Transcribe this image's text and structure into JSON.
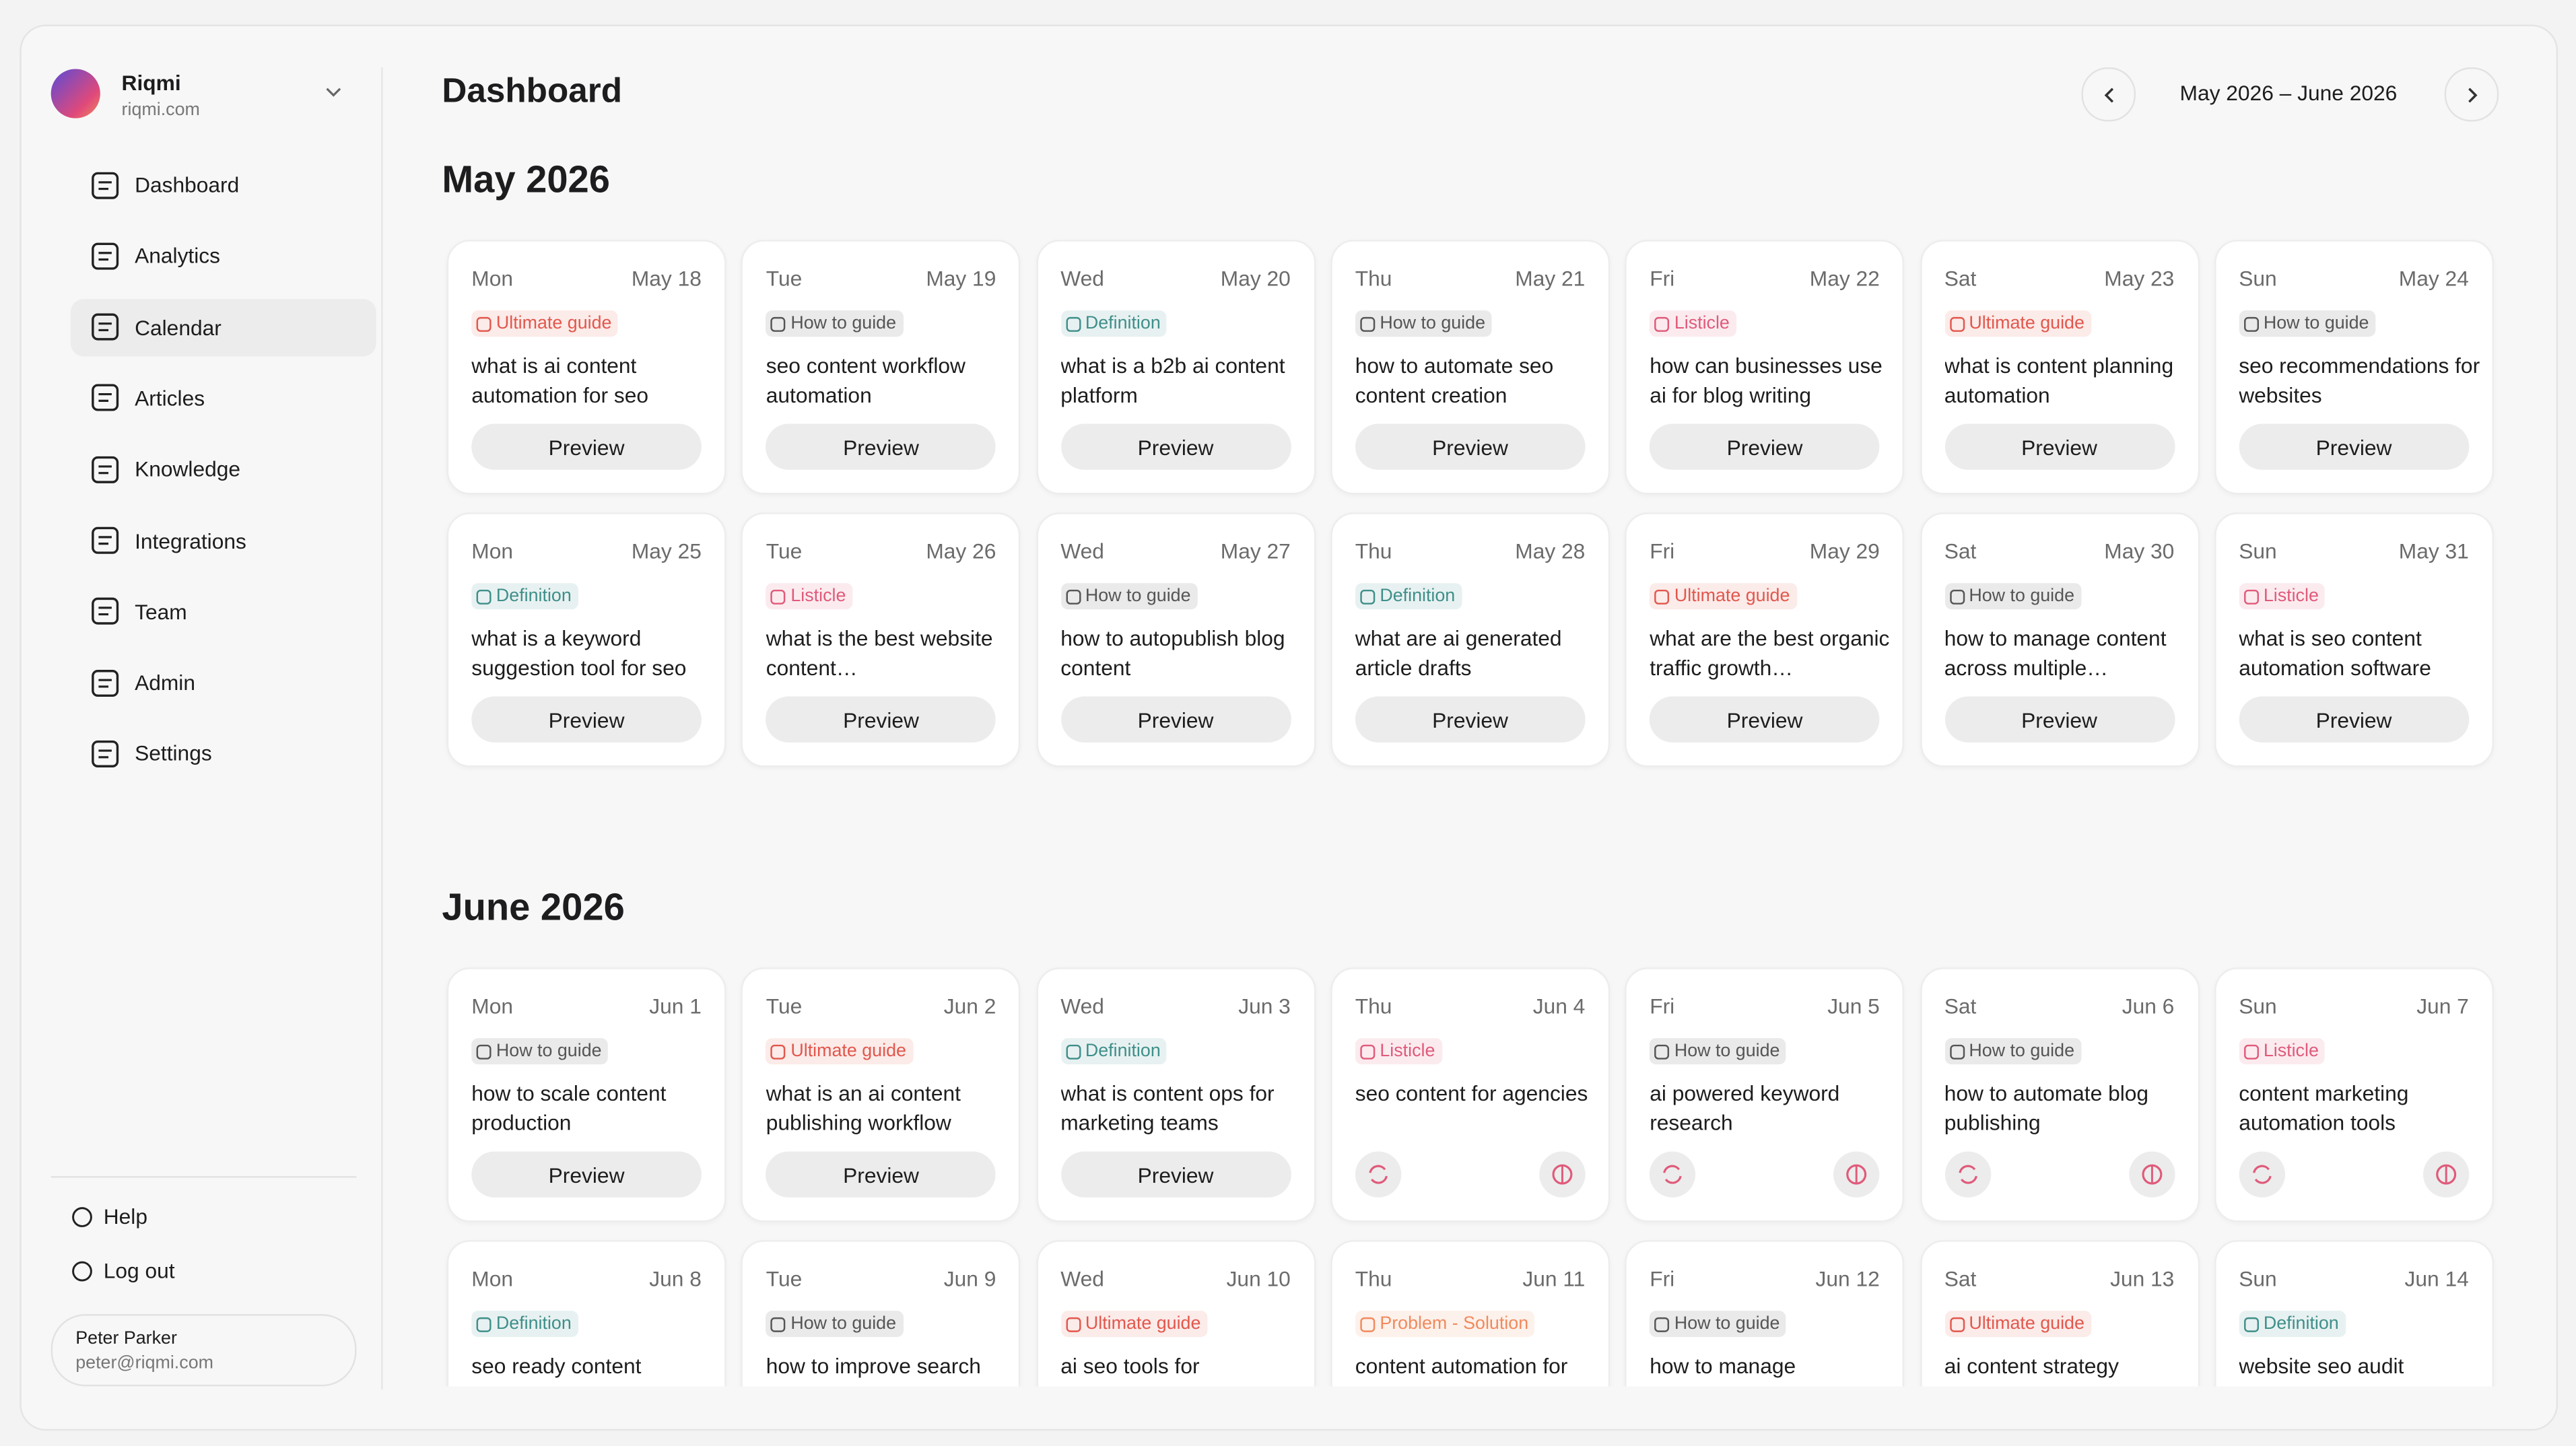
{
  "user": {
    "name": "Riqmi",
    "domain": "riqmi.com"
  },
  "nav": [
    "Dashboard",
    "Analytics",
    "Calendar",
    "Articles",
    "Knowledge",
    "Integrations",
    "Team",
    "Admin",
    "Settings"
  ],
  "active_nav": 2,
  "footer_nav": [
    "Help",
    "Log out"
  ],
  "account": {
    "name": "Peter Parker",
    "email": "peter@riqmi.com"
  },
  "header": {
    "title": "Dashboard",
    "range": "May 2026 – June 2026"
  },
  "months": [
    {
      "title": "May 2026",
      "days": [
        {
          "weekday": "Mon",
          "date": "May 18",
          "tag": "Ultimate guide",
          "tag_color": "#e2574c",
          "title": "what is ai content automation for seo",
          "action": "Preview"
        },
        {
          "weekday": "Tue",
          "date": "May 19",
          "tag": "How to guide",
          "tag_color": "#555555",
          "title": "seo content workflow automation",
          "action": "Preview"
        },
        {
          "weekday": "Wed",
          "date": "May 20",
          "tag": "Definition",
          "tag_color": "#3f8f8a",
          "title": "what is a b2b ai content platform",
          "action": "Preview"
        },
        {
          "weekday": "Thu",
          "date": "May 21",
          "tag": "How to guide",
          "tag_color": "#555555",
          "title": "how to automate seo content creation",
          "action": "Preview"
        },
        {
          "weekday": "Fri",
          "date": "May 22",
          "tag": "Listicle",
          "tag_color": "#e05a7a",
          "title": "how can businesses use ai for blog writing",
          "action": "Preview"
        },
        {
          "weekday": "Sat",
          "date": "May 23",
          "tag": "Ultimate guide",
          "tag_color": "#e2574c",
          "title": "what is content planning automation",
          "action": "Preview"
        },
        {
          "weekday": "Sun",
          "date": "May 24",
          "tag": "How to guide",
          "tag_color": "#555555",
          "title": "seo recommendations for websites",
          "action": "Preview"
        },
        {
          "weekday": "Mon",
          "date": "May 25",
          "tag": "Definition",
          "tag_color": "#3f8f8a",
          "title": "what is a keyword suggestion tool for seo",
          "action": "Preview"
        },
        {
          "weekday": "Tue",
          "date": "May 26",
          "tag": "Listicle",
          "tag_color": "#e05a7a",
          "title": "what is the best website content…",
          "action": "Preview"
        },
        {
          "weekday": "Wed",
          "date": "May 27",
          "tag": "How to guide",
          "tag_color": "#555555",
          "title": "how to autopublish blog content",
          "action": "Preview"
        },
        {
          "weekday": "Thu",
          "date": "May 28",
          "tag": "Definition",
          "tag_color": "#3f8f8a",
          "title": "what are ai generated article drafts",
          "action": "Preview"
        },
        {
          "weekday": "Fri",
          "date": "May 29",
          "tag": "Ultimate guide",
          "tag_color": "#e2574c",
          "title": "what are the best organic traffic growth…",
          "action": "Preview"
        },
        {
          "weekday": "Sat",
          "date": "May 30",
          "tag": "How to guide",
          "tag_color": "#555555",
          "title": "how to manage content across multiple…",
          "action": "Preview"
        },
        {
          "weekday": "Sun",
          "date": "May 31",
          "tag": "Listicle",
          "tag_color": "#e05a7a",
          "title": "what is seo content automation software",
          "action": "Preview"
        }
      ]
    },
    {
      "title": "June 2026",
      "days": [
        {
          "weekday": "Mon",
          "date": "Jun 1",
          "tag": "How to guide",
          "tag_color": "#555555",
          "title": "how to scale content production",
          "action": "Preview"
        },
        {
          "weekday": "Tue",
          "date": "Jun 2",
          "tag": "Ultimate guide",
          "tag_color": "#e2574c",
          "title": "what is an ai content publishing workflow",
          "action": "Preview"
        },
        {
          "weekday": "Wed",
          "date": "Jun 3",
          "tag": "Definition",
          "tag_color": "#3f8f8a",
          "title": "what is content ops for marketing teams",
          "action": "Preview"
        },
        {
          "weekday": "Thu",
          "date": "Jun 4",
          "tag": "Listicle",
          "tag_color": "#e05a7a",
          "title": "seo content for agencies"
        },
        {
          "weekday": "Fri",
          "date": "Jun 5",
          "tag": "How to guide",
          "tag_color": "#555555",
          "title": "ai powered keyword research"
        },
        {
          "weekday": "Sat",
          "date": "Jun 6",
          "tag": "How to guide",
          "tag_color": "#555555",
          "title": "how to automate blog publishing"
        },
        {
          "weekday": "Sun",
          "date": "Jun 7",
          "tag": "Listicle",
          "tag_color": "#e05a7a",
          "title": "content marketing automation tools"
        },
        {
          "weekday": "Mon",
          "date": "Jun 8",
          "tag": "Definition",
          "tag_color": "#3f8f8a",
          "title": "seo ready content"
        },
        {
          "weekday": "Tue",
          "date": "Jun 9",
          "tag": "How to guide",
          "tag_color": "#555555",
          "title": "how to improve search"
        },
        {
          "weekday": "Wed",
          "date": "Jun 10",
          "tag": "Ultimate guide",
          "tag_color": "#e2574c",
          "title": "ai seo tools for"
        },
        {
          "weekday": "Thu",
          "date": "Jun 11",
          "tag": "Problem - Solution",
          "tag_color": "#f08a5d",
          "title": "content automation for"
        },
        {
          "weekday": "Fri",
          "date": "Jun 12",
          "tag": "How to guide",
          "tag_color": "#555555",
          "title": "how to manage"
        },
        {
          "weekday": "Sat",
          "date": "Jun 13",
          "tag": "Ultimate guide",
          "tag_color": "#e2574c",
          "title": "ai content strategy"
        },
        {
          "weekday": "Sun",
          "date": "Jun 14",
          "tag": "Definition",
          "tag_color": "#3f8f8a",
          "title": "website seo audit"
        }
      ]
    }
  ]
}
